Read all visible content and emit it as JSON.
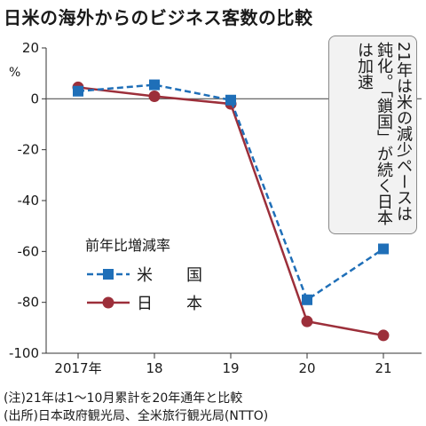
{
  "title": "日米の海外からのビジネス客数の比較",
  "y_unit": "%",
  "legend_title": "前年比増減率",
  "note": "21年は米の減少ペースは鈍化。「鎖国」が続く日本は加速",
  "footnote": "(注)21年は1〜10月累計を20年通年と比較",
  "source": "(出所)日本政府観光局、全米旅行観光局(NTTO)",
  "colors": {
    "us": "#1f6fb8",
    "japan": "#9c2f3a",
    "zero_line": "#555555"
  },
  "chart_data": {
    "type": "line",
    "categories": [
      "2017年",
      "18",
      "19",
      "20",
      "21"
    ],
    "series": [
      {
        "name": "米　国",
        "marker": "square",
        "line": "dashed",
        "values": [
          3,
          5.5,
          -0.5,
          -79,
          -59
        ]
      },
      {
        "name": "日　本",
        "marker": "circle",
        "line": "solid",
        "values": [
          4.5,
          1,
          -2,
          -87.5,
          -93
        ]
      }
    ],
    "ylim": [
      -100,
      20
    ],
    "yticks": [
      20,
      0,
      -20,
      -40,
      -60,
      -80,
      -100
    ],
    "grid": false,
    "legend_position": "left-bottom"
  }
}
